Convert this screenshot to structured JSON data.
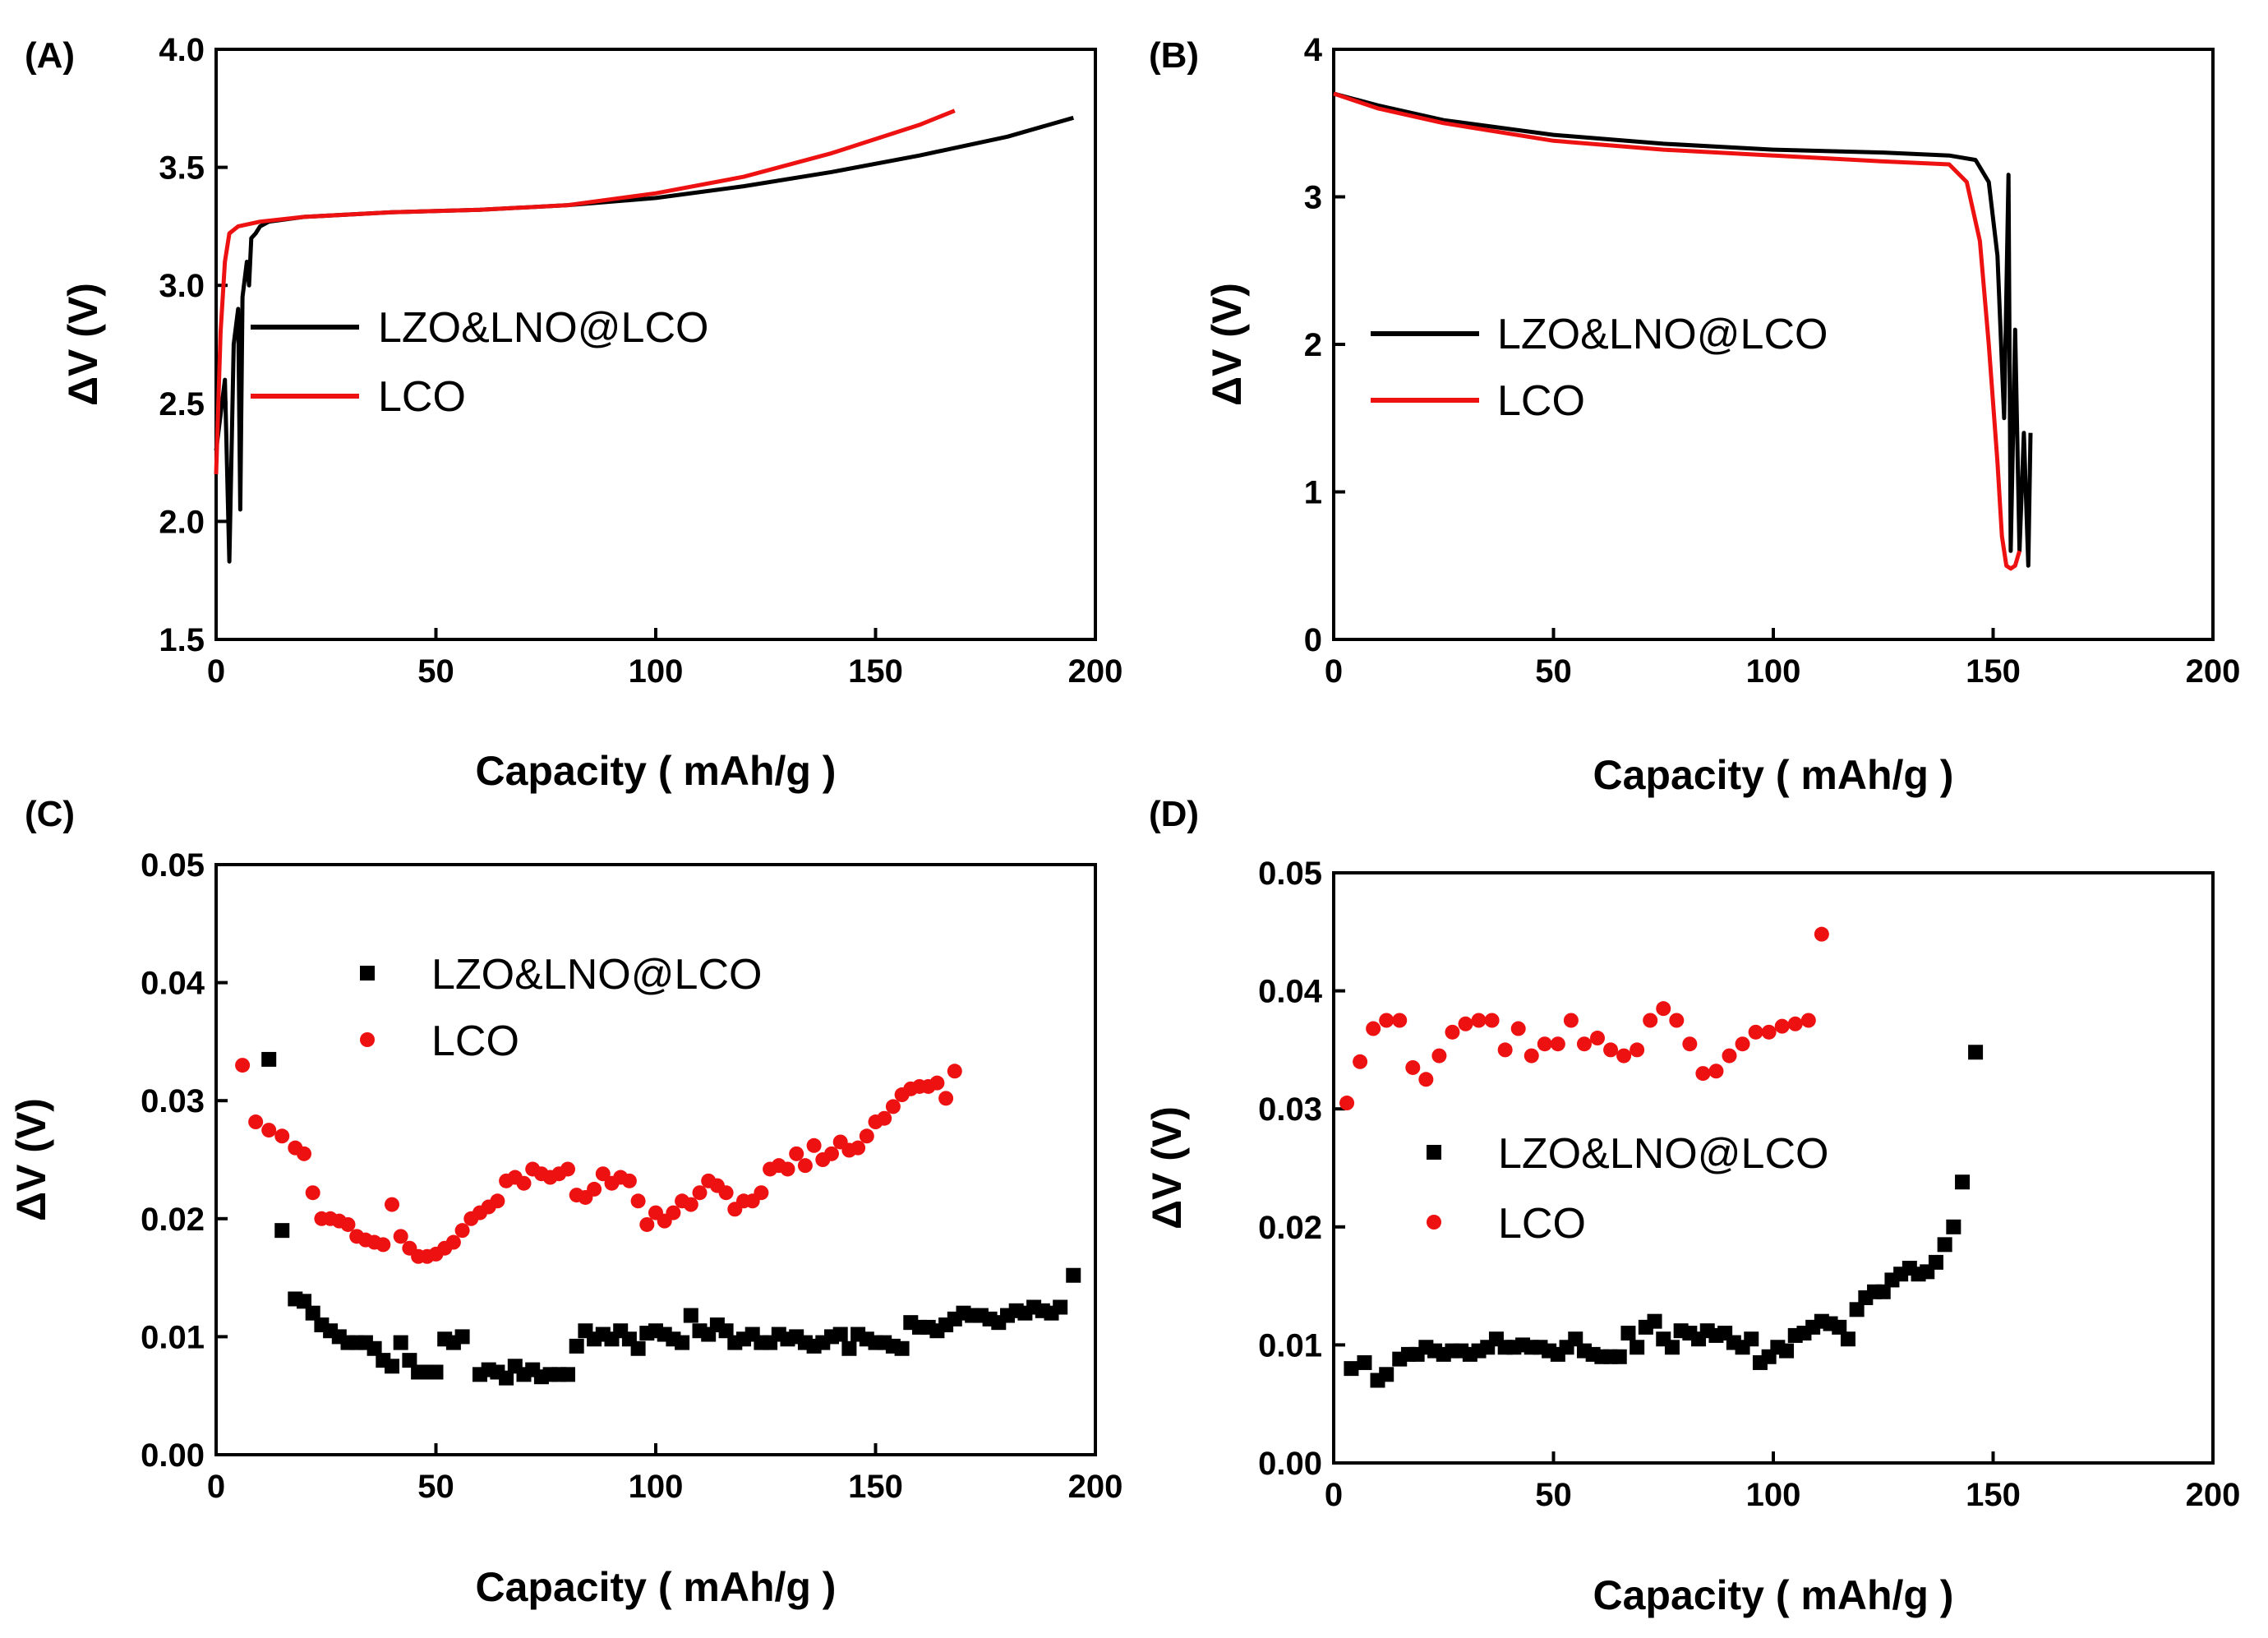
{
  "figure": {
    "colors": {
      "lzo": "#000000",
      "lco": "#ee1111"
    }
  },
  "chart_data": [
    {
      "panel": "(A)",
      "type": "line",
      "title": "",
      "xlabel": "Capacity ( mAh/g )",
      "ylabel": "ΔV (V)",
      "xlim": [
        0,
        200
      ],
      "ylim": [
        1.5,
        4.0
      ],
      "xticks": [
        0,
        50,
        100,
        150,
        200
      ],
      "xtick_labels": [
        "0",
        "50",
        "100",
        "150",
        "200"
      ],
      "yticks": [
        1.5,
        2.0,
        2.5,
        3.0,
        3.5,
        4.0
      ],
      "ytick_labels": [
        "1.5",
        "2.0",
        "2.5",
        "3.0",
        "3.5",
        "4.0"
      ],
      "legend_position": "center-left",
      "series": [
        {
          "name": "LZO&LNO@LCO",
          "color": "#000000",
          "x": [
            0,
            2,
            3,
            4,
            5,
            5.5,
            6,
            7,
            7.5,
            8,
            9,
            10,
            12,
            20,
            40,
            60,
            80,
            100,
            120,
            140,
            160,
            180,
            195
          ],
          "y": [
            2.3,
            2.6,
            1.83,
            2.75,
            2.9,
            2.05,
            2.95,
            3.1,
            3.0,
            3.2,
            3.22,
            3.25,
            3.27,
            3.29,
            3.31,
            3.32,
            3.34,
            3.37,
            3.42,
            3.48,
            3.55,
            3.63,
            3.71
          ]
        },
        {
          "name": "LCO",
          "color": "#ee1111",
          "x": [
            0,
            1,
            2,
            3,
            5,
            10,
            20,
            40,
            60,
            80,
            100,
            120,
            140,
            160,
            168
          ],
          "y": [
            2.2,
            2.8,
            3.1,
            3.22,
            3.25,
            3.27,
            3.29,
            3.31,
            3.32,
            3.34,
            3.39,
            3.46,
            3.56,
            3.68,
            3.74
          ]
        }
      ]
    },
    {
      "panel": "(B)",
      "type": "line",
      "title": "",
      "xlabel": "Capacity ( mAh/g )",
      "ylabel": "ΔV (V)",
      "xlim": [
        0,
        200
      ],
      "ylim": [
        0,
        4
      ],
      "xticks": [
        0,
        50,
        100,
        150,
        200
      ],
      "xtick_labels": [
        "0",
        "50",
        "100",
        "150",
        "200"
      ],
      "yticks": [
        0,
        1,
        2,
        3,
        4
      ],
      "ytick_labels": [
        "0",
        "1",
        "2",
        "3",
        "4"
      ],
      "legend_position": "center-left",
      "series": [
        {
          "name": "LZO&LNO@LCO",
          "color": "#000000",
          "x": [
            0,
            10,
            25,
            50,
            75,
            100,
            125,
            140,
            146,
            149,
            151,
            152.5,
            153.5,
            154,
            155,
            156,
            157,
            158,
            158.5
          ],
          "y": [
            3.7,
            3.62,
            3.52,
            3.42,
            3.36,
            3.32,
            3.3,
            3.28,
            3.25,
            3.1,
            2.6,
            1.5,
            3.15,
            0.6,
            2.1,
            0.6,
            1.4,
            0.5,
            1.4
          ]
        },
        {
          "name": "LCO",
          "color": "#ee1111",
          "x": [
            0,
            10,
            25,
            50,
            75,
            100,
            125,
            140,
            144,
            147,
            149,
            151,
            152,
            153,
            154,
            155,
            156
          ],
          "y": [
            3.7,
            3.6,
            3.5,
            3.38,
            3.32,
            3.28,
            3.24,
            3.22,
            3.1,
            2.7,
            2.0,
            1.2,
            0.7,
            0.5,
            0.48,
            0.5,
            0.6
          ]
        }
      ]
    },
    {
      "panel": "(C)",
      "type": "scatter",
      "title": "",
      "xlabel": "Capacity ( mAh/g )",
      "ylabel": "ΔV (V)",
      "xlim": [
        0,
        200
      ],
      "ylim": [
        0,
        0.05
      ],
      "xticks": [
        0,
        50,
        100,
        150,
        200
      ],
      "xtick_labels": [
        "0",
        "50",
        "100",
        "150",
        "200"
      ],
      "yticks": [
        0,
        0.01,
        0.02,
        0.03,
        0.04,
        0.05
      ],
      "ytick_labels": [
        "0.00",
        "0.01",
        "0.02",
        "0.03",
        "0.04",
        "0.05"
      ],
      "legend_position": "upper-center",
      "series": [
        {
          "name": "LZO&LNO@LCO",
          "color": "#000000",
          "marker": "square",
          "x": [
            12,
            15,
            18,
            20,
            22,
            24,
            26,
            28,
            30,
            32,
            34,
            36,
            38,
            40,
            42,
            44,
            46,
            48,
            50,
            52,
            54,
            56,
            60,
            62,
            64,
            66,
            68,
            70,
            72,
            74,
            76,
            78,
            80,
            82,
            84,
            86,
            88,
            90,
            92,
            94,
            96,
            98,
            100,
            102,
            104,
            106,
            108,
            110,
            112,
            114,
            116,
            118,
            120,
            122,
            124,
            126,
            128,
            130,
            132,
            134,
            136,
            138,
            140,
            142,
            144,
            146,
            148,
            150,
            152,
            154,
            156,
            158,
            160,
            162,
            164,
            166,
            168,
            170,
            172,
            174,
            176,
            178,
            180,
            182,
            184,
            186,
            188,
            190,
            192,
            195
          ],
          "y": [
            0.0335,
            0.019,
            0.0132,
            0.013,
            0.012,
            0.011,
            0.0105,
            0.01,
            0.0095,
            0.0095,
            0.0095,
            0.009,
            0.008,
            0.0075,
            0.0095,
            0.008,
            0.007,
            0.007,
            0.007,
            0.0098,
            0.0095,
            0.01,
            0.0068,
            0.0072,
            0.007,
            0.0065,
            0.0075,
            0.0068,
            0.0072,
            0.0066,
            0.0068,
            0.0068,
            0.0068,
            0.0092,
            0.0105,
            0.0098,
            0.0102,
            0.0098,
            0.0105,
            0.0098,
            0.009,
            0.0103,
            0.0105,
            0.0102,
            0.0098,
            0.0095,
            0.0118,
            0.0105,
            0.0102,
            0.011,
            0.0105,
            0.0095,
            0.0098,
            0.0102,
            0.0095,
            0.0095,
            0.0102,
            0.0098,
            0.01,
            0.0095,
            0.0092,
            0.0095,
            0.01,
            0.0102,
            0.009,
            0.0102,
            0.0098,
            0.0095,
            0.0095,
            0.0092,
            0.009,
            0.0112,
            0.0108,
            0.0108,
            0.0105,
            0.011,
            0.0115,
            0.012,
            0.0118,
            0.0118,
            0.0115,
            0.0112,
            0.0118,
            0.0122,
            0.012,
            0.0125,
            0.0122,
            0.012,
            0.0125,
            0.0152
          ]
        },
        {
          "name": "LCO",
          "color": "#ee1111",
          "marker": "circle",
          "x": [
            6,
            9,
            12,
            15,
            18,
            20,
            22,
            24,
            26,
            28,
            30,
            32,
            34,
            36,
            38,
            40,
            42,
            44,
            46,
            48,
            50,
            52,
            54,
            56,
            58,
            60,
            62,
            64,
            66,
            68,
            70,
            72,
            74,
            76,
            78,
            80,
            82,
            84,
            86,
            88,
            90,
            92,
            94,
            96,
            98,
            100,
            102,
            104,
            106,
            108,
            110,
            112,
            114,
            116,
            118,
            120,
            122,
            124,
            126,
            128,
            130,
            132,
            134,
            136,
            138,
            140,
            142,
            144,
            146,
            148,
            150,
            152,
            154,
            156,
            158,
            160,
            162,
            164,
            166,
            168
          ],
          "y": [
            0.033,
            0.0282,
            0.0275,
            0.027,
            0.026,
            0.0255,
            0.0222,
            0.02,
            0.02,
            0.0198,
            0.0195,
            0.0185,
            0.0182,
            0.018,
            0.0178,
            0.0212,
            0.0185,
            0.0175,
            0.0168,
            0.0168,
            0.017,
            0.0175,
            0.018,
            0.019,
            0.02,
            0.0205,
            0.021,
            0.0215,
            0.0232,
            0.0235,
            0.023,
            0.0242,
            0.0238,
            0.0235,
            0.0238,
            0.0242,
            0.022,
            0.0218,
            0.0225,
            0.0238,
            0.023,
            0.0235,
            0.0232,
            0.0215,
            0.0195,
            0.0205,
            0.0198,
            0.0205,
            0.0215,
            0.0212,
            0.0222,
            0.0232,
            0.0228,
            0.0222,
            0.0208,
            0.0215,
            0.0215,
            0.0222,
            0.0242,
            0.0245,
            0.0242,
            0.0255,
            0.0245,
            0.0262,
            0.025,
            0.0255,
            0.0265,
            0.0258,
            0.026,
            0.027,
            0.0282,
            0.0285,
            0.0295,
            0.0305,
            0.031,
            0.0312,
            0.0312,
            0.0315,
            0.0302,
            0.0325
          ]
        }
      ]
    },
    {
      "panel": "(D)",
      "type": "scatter",
      "title": "",
      "xlabel": "Capacity ( mAh/g )",
      "ylabel": "ΔV (V)",
      "xlim": [
        0,
        200
      ],
      "ylim": [
        0,
        0.05
      ],
      "xticks": [
        0,
        50,
        100,
        150,
        200
      ],
      "xtick_labels": [
        "0",
        "50",
        "100",
        "150",
        "200"
      ],
      "yticks": [
        0,
        0.01,
        0.02,
        0.03,
        0.04,
        0.05
      ],
      "ytick_labels": [
        "0.00",
        "0.01",
        "0.02",
        "0.03",
        "0.04",
        "0.05"
      ],
      "legend_position": "center",
      "series": [
        {
          "name": "LZO&LNO@LCO",
          "color": "#000000",
          "marker": "square",
          "x": [
            4,
            7,
            10,
            12,
            15,
            17,
            19,
            21,
            23,
            25,
            27,
            29,
            31,
            33,
            35,
            37,
            39,
            41,
            43,
            45,
            47,
            49,
            51,
            53,
            55,
            57,
            59,
            61,
            63,
            65,
            67,
            69,
            71,
            73,
            75,
            77,
            79,
            81,
            83,
            85,
            87,
            89,
            91,
            93,
            95,
            97,
            99,
            101,
            103,
            105,
            107,
            109,
            111,
            113,
            115,
            117,
            119,
            121,
            123,
            125,
            127,
            129,
            131,
            133,
            135,
            137,
            139,
            141,
            143,
            146
          ],
          "y": [
            0.008,
            0.0085,
            0.007,
            0.0075,
            0.0088,
            0.0092,
            0.0092,
            0.0098,
            0.0095,
            0.0092,
            0.0095,
            0.0095,
            0.0092,
            0.0095,
            0.0098,
            0.0105,
            0.0098,
            0.0098,
            0.01,
            0.0098,
            0.0098,
            0.0095,
            0.0092,
            0.0098,
            0.0105,
            0.0095,
            0.0092,
            0.009,
            0.009,
            0.009,
            0.011,
            0.0098,
            0.0115,
            0.012,
            0.0105,
            0.0098,
            0.0112,
            0.011,
            0.0105,
            0.0112,
            0.0108,
            0.011,
            0.0102,
            0.0098,
            0.0105,
            0.0085,
            0.009,
            0.0098,
            0.0095,
            0.0108,
            0.011,
            0.0115,
            0.012,
            0.0118,
            0.0115,
            0.0105,
            0.013,
            0.014,
            0.0145,
            0.0145,
            0.0155,
            0.016,
            0.0165,
            0.016,
            0.0162,
            0.017,
            0.0185,
            0.02,
            0.0238,
            0.0348
          ]
        },
        {
          "name": "LCO",
          "color": "#ee1111",
          "marker": "circle",
          "x": [
            3,
            6,
            9,
            12,
            15,
            18,
            21,
            24,
            27,
            30,
            33,
            36,
            39,
            42,
            45,
            48,
            51,
            54,
            57,
            60,
            63,
            66,
            69,
            72,
            75,
            78,
            81,
            84,
            87,
            90,
            93,
            96,
            99,
            102,
            105,
            108,
            111
          ],
          "y": [
            0.0305,
            0.034,
            0.0368,
            0.0375,
            0.0375,
            0.0335,
            0.0325,
            0.0345,
            0.0365,
            0.0372,
            0.0375,
            0.0375,
            0.035,
            0.0368,
            0.0345,
            0.0355,
            0.0355,
            0.0375,
            0.0355,
            0.036,
            0.035,
            0.0345,
            0.035,
            0.0375,
            0.0385,
            0.0375,
            0.0355,
            0.033,
            0.0332,
            0.0345,
            0.0355,
            0.0365,
            0.0365,
            0.037,
            0.0372,
            0.0375,
            0.0448
          ]
        }
      ]
    }
  ]
}
